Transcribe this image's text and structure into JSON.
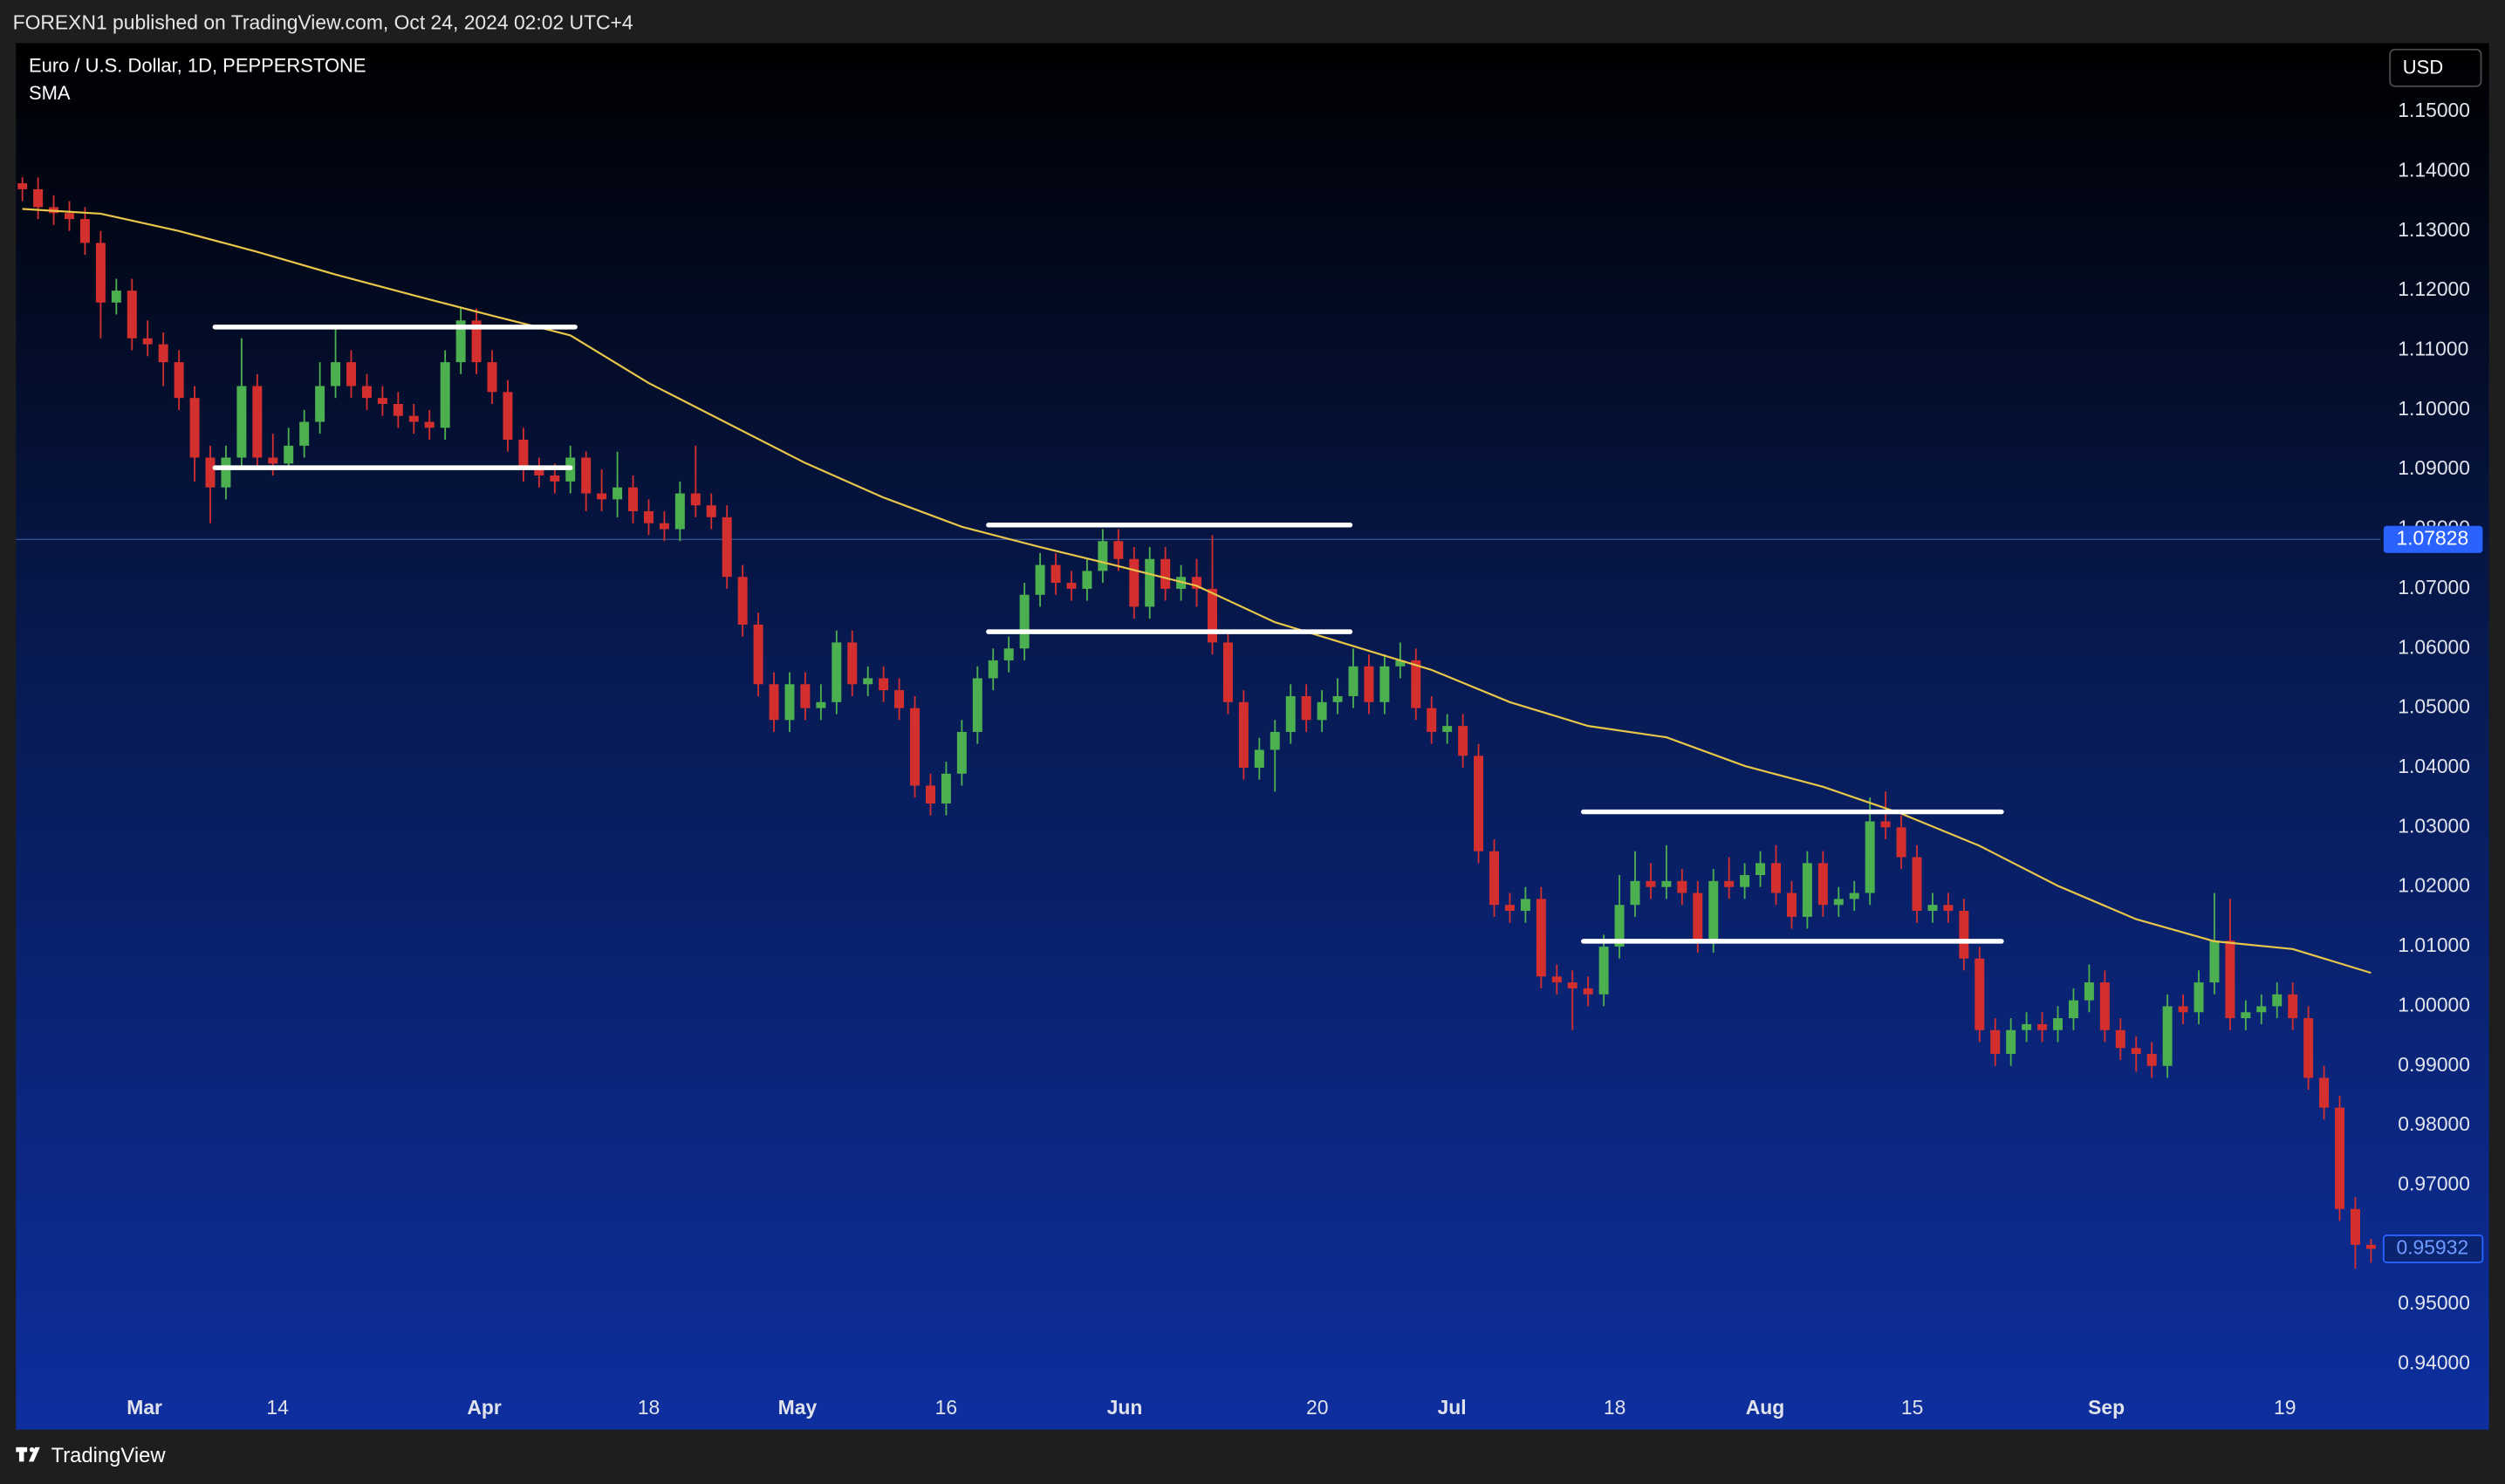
{
  "chart_data": {
    "type": "candlestick",
    "header": "FOREXN1 published on TradingView.com, Oct 24, 2024 02:02 UTC+4",
    "title": "Euro / U.S. Dollar, 1D, PEPPERSTONE",
    "currency": "USD",
    "footer": "TradingView",
    "up_color": "#4caf50",
    "down_color": "#d32f2f",
    "ylim": [
      0.929,
      1.1615
    ],
    "xlim": [
      -0.41,
      150.6
    ],
    "yticks": [
      {
        "value": 1.15,
        "label": "1.15000"
      },
      {
        "value": 1.14,
        "label": "1.14000"
      },
      {
        "value": 1.13,
        "label": "1.13000"
      },
      {
        "value": 1.12,
        "label": "1.12000"
      },
      {
        "value": 1.11,
        "label": "1.11000"
      },
      {
        "value": 1.1,
        "label": "1.10000"
      },
      {
        "value": 1.09,
        "label": "1.09000"
      },
      {
        "value": 1.08,
        "label": "1.08000"
      },
      {
        "value": 1.07,
        "label": "1.07000"
      },
      {
        "value": 1.06,
        "label": "1.06000"
      },
      {
        "value": 1.05,
        "label": "1.05000"
      },
      {
        "value": 1.04,
        "label": "1.04000"
      },
      {
        "value": 1.03,
        "label": "1.03000"
      },
      {
        "value": 1.02,
        "label": "1.02000"
      },
      {
        "value": 1.01,
        "label": "1.01000"
      },
      {
        "value": 1.0,
        "label": "1.00000"
      },
      {
        "value": 0.99,
        "label": "0.99000"
      },
      {
        "value": 0.98,
        "label": "0.98000"
      },
      {
        "value": 0.97,
        "label": "0.97000"
      },
      {
        "value": 0.96,
        "label": "0.96000"
      },
      {
        "value": 0.95,
        "label": "0.95000"
      },
      {
        "value": 0.94,
        "label": "0.94000"
      }
    ],
    "xticks": [
      {
        "value": 7.8,
        "label": "Mar"
      },
      {
        "value": 16.3,
        "label": "14"
      },
      {
        "value": 29.5,
        "label": "Apr"
      },
      {
        "value": 40,
        "label": "18"
      },
      {
        "value": 49.5,
        "label": "May"
      },
      {
        "value": 59,
        "label": "16"
      },
      {
        "value": 70.4,
        "label": "Jun"
      },
      {
        "value": 82.7,
        "label": "20"
      },
      {
        "value": 91.3,
        "label": "Jul"
      },
      {
        "value": 101.7,
        "label": "18"
      },
      {
        "value": 111.3,
        "label": "Aug"
      },
      {
        "value": 120.7,
        "label": "15"
      },
      {
        "value": 133.1,
        "label": "Sep"
      },
      {
        "value": 144.5,
        "label": "19"
      }
    ],
    "open": [
      1.138,
      1.137,
      1.134,
      1.133,
      1.132,
      1.128,
      1.118,
      1.12,
      1.112,
      1.111,
      1.108,
      1.102,
      1.092,
      1.087,
      1.092,
      1.104,
      1.092,
      1.091,
      1.094,
      1.098,
      1.104,
      1.108,
      1.104,
      1.102,
      1.101,
      1.099,
      1.098,
      1.097,
      1.108,
      1.115,
      1.108,
      1.103,
      1.095,
      1.09,
      1.089,
      1.088,
      1.092,
      1.086,
      1.085,
      1.087,
      1.083,
      1.081,
      1.08,
      1.086,
      1.084,
      1.082,
      1.072,
      1.064,
      1.054,
      1.048,
      1.054,
      1.05,
      1.051,
      1.061,
      1.054,
      1.055,
      1.053,
      1.05,
      1.037,
      1.034,
      1.039,
      1.046,
      1.055,
      1.058,
      1.06,
      1.069,
      1.074,
      1.071,
      1.07,
      1.073,
      1.078,
      1.075,
      1.067,
      1.075,
      1.07,
      1.072,
      1.07,
      1.061,
      1.051,
      1.04,
      1.043,
      1.046,
      1.052,
      1.048,
      1.051,
      1.052,
      1.057,
      1.051,
      1.057,
      1.058,
      1.05,
      1.046,
      1.047,
      1.042,
      1.026,
      1.017,
      1.016,
      1.018,
      1.005,
      1.004,
      1.003,
      1.002,
      1.01,
      1.017,
      1.021,
      1.02,
      1.021,
      1.019,
      1.011,
      1.021,
      1.02,
      1.022,
      1.024,
      1.019,
      1.015,
      1.024,
      1.017,
      1.018,
      1.019,
      1.031,
      1.03,
      1.025,
      1.016,
      1.017,
      1.016,
      1.008,
      0.996,
      0.992,
      0.996,
      0.997,
      0.996,
      0.998,
      1.001,
      1.004,
      0.996,
      0.993,
      0.992,
      0.99,
      1.0,
      0.999,
      1.004,
      1.011,
      0.998,
      0.999,
      1.0,
      1.002,
      0.998,
      0.988,
      0.983,
      0.966,
      0.96
    ],
    "high": [
      1.139,
      1.139,
      1.136,
      1.135,
      1.134,
      1.13,
      1.122,
      1.122,
      1.115,
      1.113,
      1.11,
      1.104,
      1.094,
      1.094,
      1.112,
      1.106,
      1.096,
      1.097,
      1.1,
      1.108,
      1.114,
      1.11,
      1.106,
      1.104,
      1.103,
      1.101,
      1.1,
      1.11,
      1.117,
      1.117,
      1.11,
      1.105,
      1.097,
      1.092,
      1.091,
      1.094,
      1.093,
      1.09,
      1.093,
      1.089,
      1.085,
      1.083,
      1.088,
      1.094,
      1.086,
      1.084,
      1.074,
      1.066,
      1.056,
      1.056,
      1.056,
      1.054,
      1.063,
      1.063,
      1.057,
      1.057,
      1.055,
      1.052,
      1.039,
      1.041,
      1.048,
      1.057,
      1.06,
      1.062,
      1.071,
      1.076,
      1.076,
      1.073,
      1.075,
      1.08,
      1.08,
      1.077,
      1.077,
      1.077,
      1.074,
      1.075,
      1.079,
      1.063,
      1.053,
      1.045,
      1.048,
      1.054,
      1.054,
      1.053,
      1.055,
      1.06,
      1.059,
      1.059,
      1.061,
      1.06,
      1.052,
      1.049,
      1.049,
      1.044,
      1.028,
      1.019,
      1.02,
      1.02,
      1.007,
      1.006,
      1.005,
      1.012,
      1.022,
      1.026,
      1.024,
      1.027,
      1.023,
      1.021,
      1.023,
      1.025,
      1.024,
      1.026,
      1.027,
      1.021,
      1.026,
      1.026,
      1.02,
      1.021,
      1.035,
      1.036,
      1.032,
      1.027,
      1.019,
      1.019,
      1.018,
      1.01,
      0.998,
      0.998,
      0.999,
      0.999,
      1.0,
      1.003,
      1.007,
      1.006,
      0.998,
      0.995,
      0.994,
      1.002,
      1.002,
      1.006,
      1.019,
      1.018,
      1.001,
      1.002,
      1.004,
      1.004,
      1.0,
      0.99,
      0.985,
      0.968,
      0.961
    ],
    "low": [
      1.135,
      1.132,
      1.131,
      1.13,
      1.126,
      1.112,
      1.116,
      1.11,
      1.109,
      1.104,
      1.1,
      1.088,
      1.081,
      1.085,
      1.09,
      1.09,
      1.089,
      1.09,
      1.092,
      1.096,
      1.102,
      1.102,
      1.1,
      1.099,
      1.097,
      1.096,
      1.095,
      1.095,
      1.106,
      1.106,
      1.101,
      1.093,
      1.088,
      1.087,
      1.086,
      1.086,
      1.083,
      1.083,
      1.082,
      1.081,
      1.079,
      1.078,
      1.078,
      1.082,
      1.08,
      1.07,
      1.062,
      1.052,
      1.046,
      1.046,
      1.048,
      1.048,
      1.049,
      1.052,
      1.052,
      1.051,
      1.048,
      1.035,
      1.032,
      1.032,
      1.037,
      1.044,
      1.053,
      1.056,
      1.058,
      1.067,
      1.069,
      1.068,
      1.068,
      1.071,
      1.073,
      1.065,
      1.065,
      1.068,
      1.068,
      1.067,
      1.059,
      1.049,
      1.038,
      1.038,
      1.036,
      1.044,
      1.046,
      1.046,
      1.049,
      1.05,
      1.049,
      1.049,
      1.055,
      1.048,
      1.044,
      1.044,
      1.04,
      1.024,
      1.015,
      1.014,
      1.014,
      1.003,
      1.002,
      0.996,
      1.0,
      1.0,
      1.008,
      1.015,
      1.018,
      1.018,
      1.017,
      1.009,
      1.009,
      1.018,
      1.018,
      1.02,
      1.017,
      1.013,
      1.013,
      1.015,
      1.015,
      1.016,
      1.017,
      1.028,
      1.023,
      1.014,
      1.014,
      1.014,
      1.006,
      0.994,
      0.99,
      0.99,
      0.994,
      0.994,
      0.994,
      0.996,
      0.999,
      0.994,
      0.991,
      0.989,
      0.988,
      0.988,
      0.997,
      0.997,
      1.002,
      0.996,
      0.996,
      0.997,
      0.998,
      0.996,
      0.986,
      0.981,
      0.964,
      0.956,
      0.957
    ],
    "close": [
      1.137,
      1.134,
      1.133,
      1.132,
      1.128,
      1.118,
      1.12,
      1.112,
      1.111,
      1.108,
      1.102,
      1.092,
      1.087,
      1.092,
      1.104,
      1.092,
      1.091,
      1.094,
      1.098,
      1.104,
      1.108,
      1.104,
      1.102,
      1.101,
      1.099,
      1.098,
      1.097,
      1.108,
      1.115,
      1.108,
      1.103,
      1.095,
      1.09,
      1.089,
      1.088,
      1.092,
      1.086,
      1.085,
      1.087,
      1.083,
      1.081,
      1.08,
      1.086,
      1.084,
      1.082,
      1.072,
      1.064,
      1.054,
      1.048,
      1.054,
      1.05,
      1.051,
      1.061,
      1.054,
      1.055,
      1.053,
      1.05,
      1.037,
      1.034,
      1.039,
      1.046,
      1.055,
      1.058,
      1.06,
      1.069,
      1.074,
      1.071,
      1.07,
      1.073,
      1.078,
      1.075,
      1.067,
      1.075,
      1.07,
      1.072,
      1.07,
      1.061,
      1.051,
      1.04,
      1.043,
      1.046,
      1.052,
      1.048,
      1.051,
      1.052,
      1.057,
      1.051,
      1.057,
      1.058,
      1.05,
      1.046,
      1.047,
      1.042,
      1.026,
      1.017,
      1.016,
      1.018,
      1.005,
      1.004,
      1.003,
      1.002,
      1.01,
      1.017,
      1.021,
      1.02,
      1.021,
      1.019,
      1.011,
      1.021,
      1.02,
      1.022,
      1.024,
      1.019,
      1.015,
      1.024,
      1.017,
      1.018,
      1.019,
      1.031,
      1.03,
      1.025,
      1.016,
      1.017,
      1.016,
      1.008,
      0.996,
      0.992,
      0.996,
      0.997,
      0.996,
      0.998,
      1.001,
      1.004,
      0.996,
      0.993,
      0.992,
      0.99,
      1.0,
      0.999,
      1.004,
      1.011,
      0.998,
      0.999,
      1.0,
      1.002,
      0.998,
      0.988,
      0.983,
      0.966,
      0.96,
      0.95932
    ],
    "sma": {
      "name": "SMA",
      "color": "#e8c64a",
      "x": [
        0,
        5,
        10,
        15,
        20,
        25,
        30,
        35,
        40,
        45,
        50,
        55,
        60,
        65,
        70,
        75,
        80,
        85,
        90,
        95,
        100,
        105,
        110,
        115,
        120,
        125,
        130,
        135,
        140,
        145,
        150
      ],
      "values": [
        1.1337,
        1.1329,
        1.13,
        1.1265,
        1.1227,
        1.1192,
        1.1158,
        1.1125,
        1.1045,
        1.0978,
        1.0911,
        1.0853,
        1.0804,
        1.077,
        1.0738,
        1.0705,
        1.0644,
        1.0604,
        1.0564,
        1.051,
        1.047,
        1.0451,
        1.0403,
        1.0368,
        1.0323,
        1.0269,
        1.0202,
        1.0146,
        1.0109,
        1.0096,
        1.0056
      ]
    },
    "levels": [
      {
        "x": [
          12.3,
          35.3
        ],
        "y": 1.1139
      },
      {
        "x": [
          12.3,
          35.0
        ],
        "y": 1.0903
      },
      {
        "x": [
          61.7,
          84.8
        ],
        "y": 1.0807
      },
      {
        "x": [
          61.7,
          84.8
        ],
        "y": 1.0628
      },
      {
        "x": [
          99.7,
          126.4
        ],
        "y": 1.0326
      },
      {
        "x": [
          99.7,
          126.4
        ],
        "y": 1.0109
      }
    ],
    "level_color": "#ffffff",
    "price_line": {
      "value": 1.07828,
      "label": "1.07828"
    },
    "last_price": {
      "value": 0.95932,
      "label": "0.95932"
    }
  }
}
